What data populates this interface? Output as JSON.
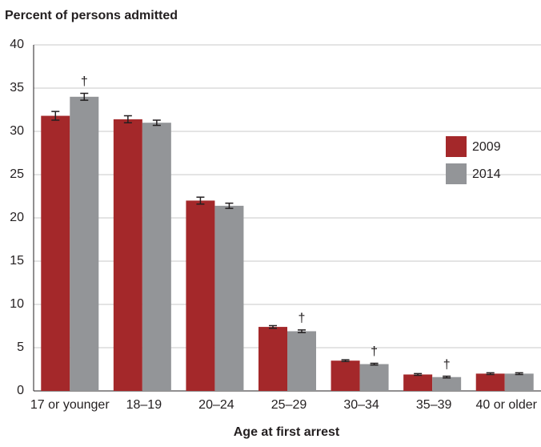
{
  "chart_data": {
    "type": "bar",
    "title": "Percent of persons admitted",
    "x_label": "Age at first arrest",
    "categories": [
      "17 or younger",
      "18–19",
      "20–24",
      "25–29",
      "30–34",
      "35–39",
      "40 or older"
    ],
    "series": [
      {
        "name": "2009",
        "color": "#a4282a",
        "values": [
          31.8,
          31.4,
          22.0,
          7.4,
          3.5,
          1.9,
          2.0
        ],
        "errors": [
          0.5,
          0.4,
          0.4,
          0.15,
          0.1,
          0.1,
          0.1
        ]
      },
      {
        "name": "2014",
        "color": "#939598",
        "values": [
          34.0,
          31.0,
          21.4,
          6.9,
          3.1,
          1.6,
          2.0
        ],
        "errors": [
          0.4,
          0.3,
          0.3,
          0.15,
          0.1,
          0.1,
          0.1
        ],
        "annotations": [
          "†",
          null,
          null,
          "†",
          "†",
          "†",
          null
        ]
      }
    ],
    "ylim": [
      0,
      40
    ],
    "yticks": [
      0,
      5,
      10,
      15,
      20,
      25,
      30,
      35,
      40
    ],
    "grid": true,
    "legend": "right"
  }
}
